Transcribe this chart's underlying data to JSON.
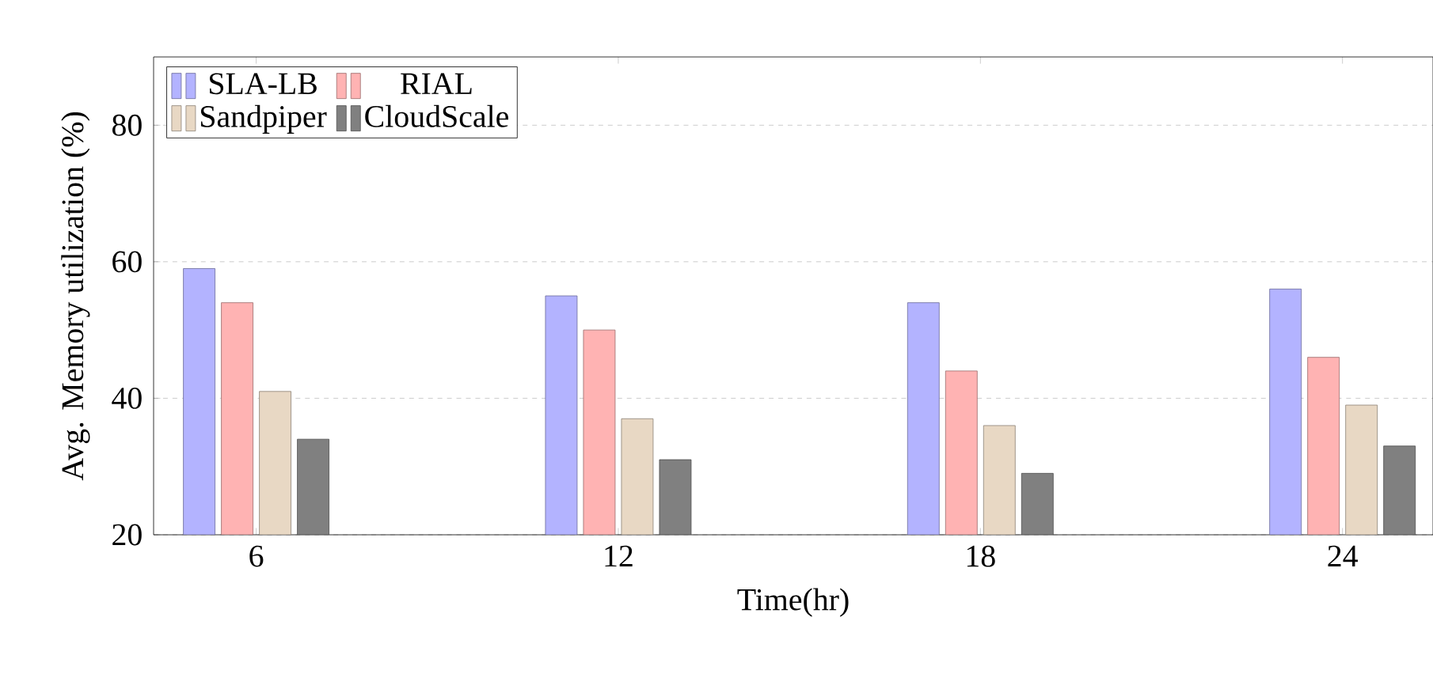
{
  "chart_data": {
    "type": "bar",
    "xlabel": "Time(hr)",
    "ylabel": "Avg. Memory utilization (%)",
    "x": [
      6,
      12,
      18,
      24
    ],
    "xlim": [
      4.3,
      25.5
    ],
    "xticks": [
      6,
      12,
      18,
      24
    ],
    "ylim": [
      20,
      90
    ],
    "yticks": [
      20,
      40,
      60,
      80
    ],
    "grid": "y",
    "legend": "top left",
    "series": [
      {
        "name": "SLA-LB",
        "color": "#b3b3ff",
        "values": [
          59,
          55,
          54,
          56
        ]
      },
      {
        "name": "RIAL",
        "color": "#ffb3b3",
        "values": [
          54,
          50,
          44,
          46
        ]
      },
      {
        "name": "Sandpiper",
        "color": "#e8d8c4",
        "values": [
          41,
          37,
          36,
          39
        ]
      },
      {
        "name": "CloudScale",
        "color": "#808080",
        "values": [
          34,
          31,
          29,
          33
        ]
      }
    ]
  }
}
